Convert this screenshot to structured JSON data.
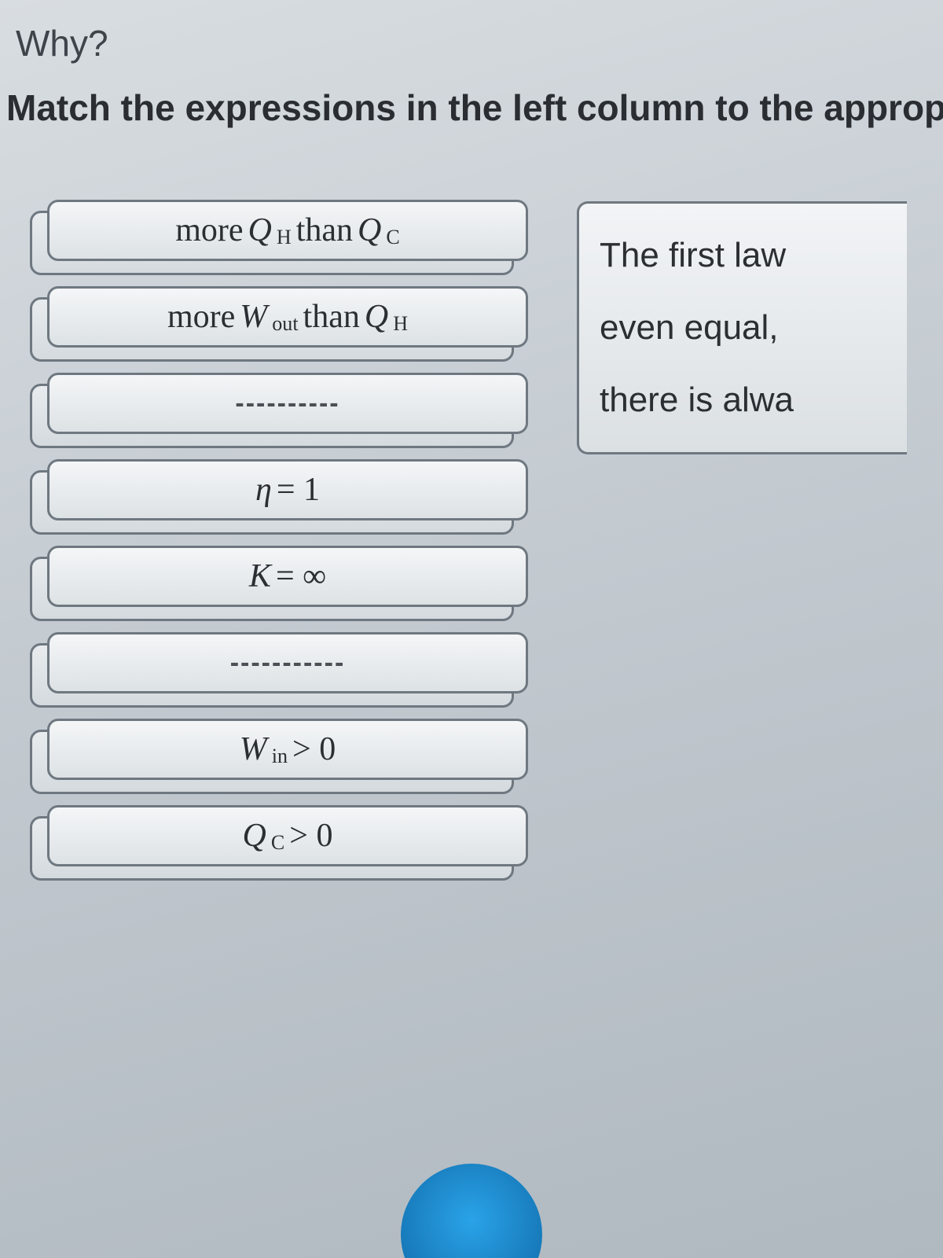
{
  "header": {
    "why": "Why?",
    "instruction": "Match the expressions in the left column to the approp"
  },
  "left_tiles": [
    {
      "id": "more-qh-than-qc",
      "kind": "math",
      "parts": [
        "more ",
        {
          "it": "Q",
          "sub": "H"
        },
        " than ",
        {
          "it": "Q",
          "sub": "C"
        }
      ]
    },
    {
      "id": "more-wout-than-qh",
      "kind": "math",
      "parts": [
        "more ",
        {
          "it": "W",
          "sub": "out"
        },
        " than ",
        {
          "it": "Q",
          "sub": "H"
        }
      ]
    },
    {
      "id": "blank-1",
      "kind": "dashes",
      "text": "----------"
    },
    {
      "id": "eta-eq-1",
      "kind": "math",
      "parts": [
        {
          "it": "η"
        },
        " = 1"
      ]
    },
    {
      "id": "k-eq-inf",
      "kind": "math",
      "parts": [
        {
          "it": "K"
        },
        " = ∞"
      ]
    },
    {
      "id": "blank-2",
      "kind": "dashes",
      "text": "-----------"
    },
    {
      "id": "win-gt-0",
      "kind": "math",
      "parts": [
        {
          "it": "W",
          "sub": "in"
        },
        " > 0"
      ]
    },
    {
      "id": "qc-gt-0",
      "kind": "math",
      "parts": [
        {
          "it": "Q",
          "sub": "C"
        },
        " > 0"
      ]
    }
  ],
  "right_box": {
    "lines": [
      "The first law",
      "even equal,",
      "there is alwa"
    ]
  },
  "colors": {
    "tile_border": "#6f7880",
    "text": "#2b2f33",
    "bg_top": "#d8dde1",
    "bg_bottom": "#b0b9c0",
    "accent_blue": "#1678b8"
  }
}
